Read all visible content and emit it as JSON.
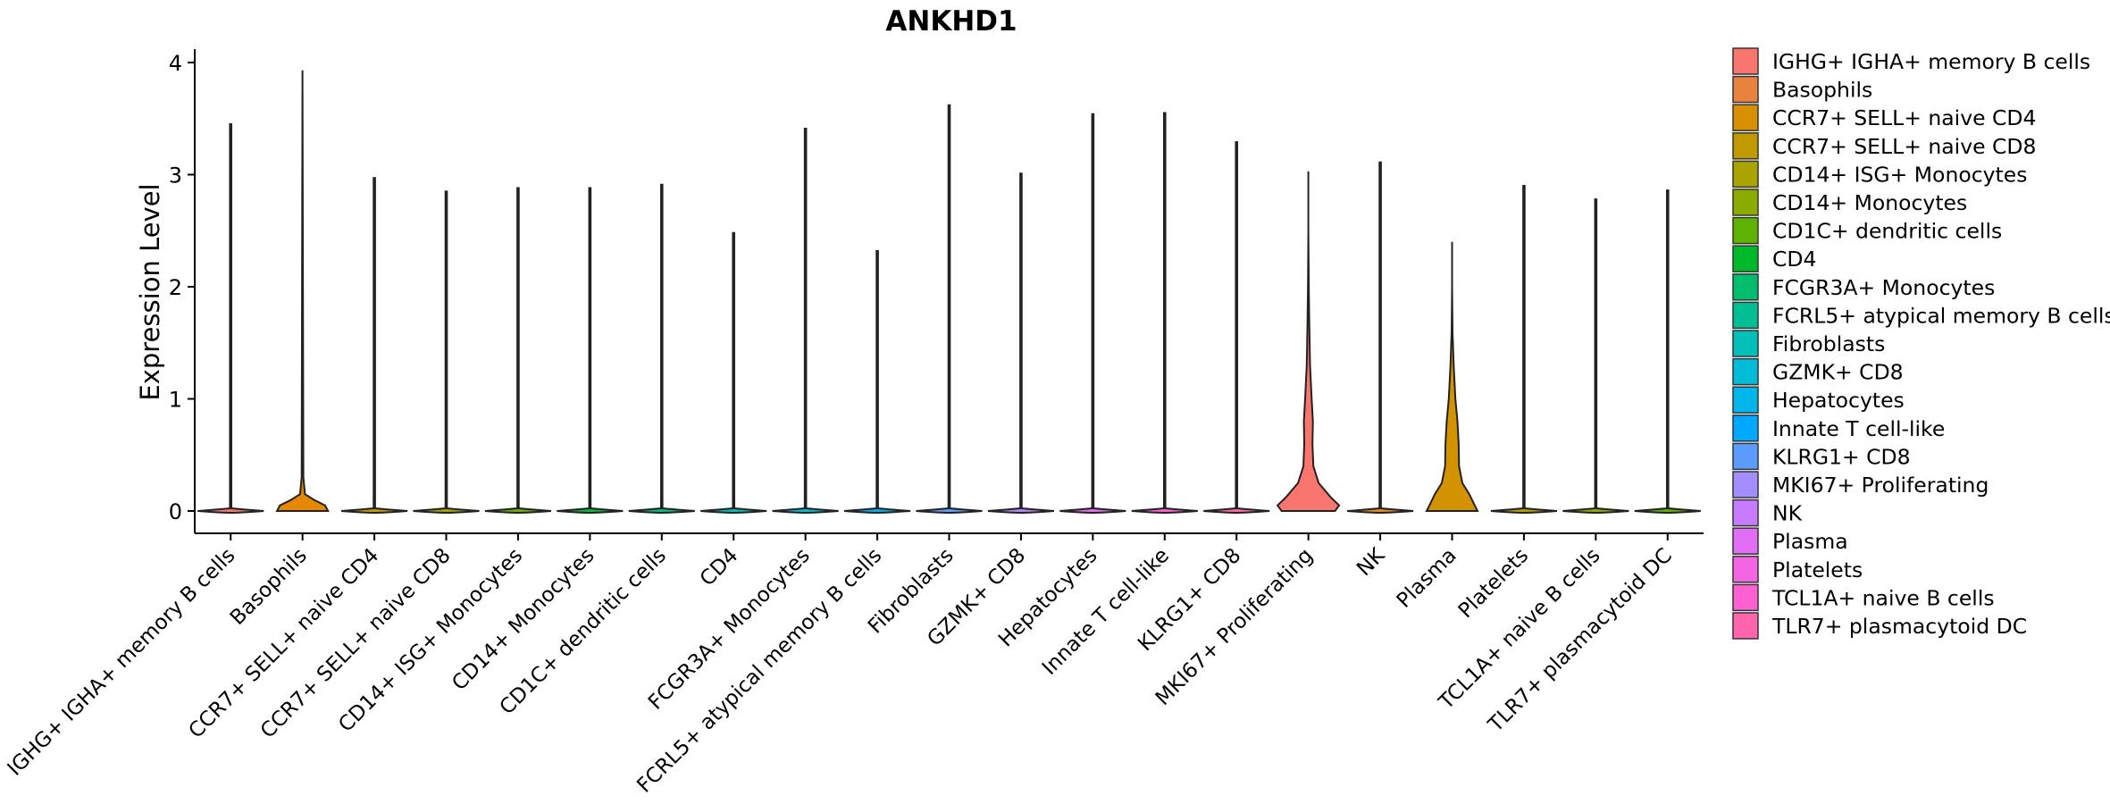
{
  "chart_data": {
    "type": "violin",
    "title": "ANKHD1",
    "xlabel": "",
    "ylabel": "Expression Level",
    "ylim": [
      -0.2,
      4.15
    ],
    "yticks": [
      0,
      1,
      2,
      3,
      4
    ],
    "categories": [
      "IGHG+ IGHA+ memory B cells",
      "Basophils",
      "CCR7+ SELL+ naive CD4",
      "CCR7+ SELL+ naive CD8",
      "CD14+ ISG+ Monocytes",
      "CD14+ Monocytes",
      "CD1C+ dendritic cells",
      "CD4",
      "FCGR3A+ Monocytes",
      "FCRL5+ atypical memory B cells",
      "Fibroblasts",
      "GZMK+ CD8",
      "Hepatocytes",
      "Innate T cell-like",
      "KLRG1+ CD8",
      "MKI67+ Proliferating",
      "NK",
      "Plasma",
      "Platelets",
      "TCL1A+ naive B cells",
      "TLR7+ plasmacytoid DC"
    ],
    "max_values": [
      3.45,
      3.93,
      2.97,
      2.85,
      2.88,
      2.88,
      2.91,
      2.48,
      3.41,
      2.32,
      3.62,
      3.01,
      3.54,
      3.55,
      3.29,
      3.03,
      3.11,
      2.38,
      2.9,
      2.78,
      2.86
    ],
    "density_profiles": [
      [],
      [
        [
          0,
          0.62
        ],
        [
          0.05,
          0.55
        ],
        [
          0.1,
          0.28
        ],
        [
          0.15,
          0.06
        ],
        [
          0.3,
          0.02
        ],
        [
          3.9,
          0.0
        ]
      ],
      [],
      [],
      [],
      [],
      [],
      [],
      [],
      [],
      [],
      [],
      [],
      [],
      [],
      [
        [
          0,
          0.65
        ],
        [
          0.05,
          0.75
        ],
        [
          0.12,
          0.55
        ],
        [
          0.25,
          0.25
        ],
        [
          0.4,
          0.12
        ],
        [
          0.6,
          0.1
        ],
        [
          0.8,
          0.11
        ],
        [
          1.0,
          0.08
        ],
        [
          1.3,
          0.04
        ],
        [
          1.7,
          0.02
        ],
        [
          2.0,
          0.01
        ],
        [
          2.5,
          0.0
        ],
        [
          3.0,
          0.0
        ]
      ],
      [],
      [
        [
          0,
          0.62
        ],
        [
          0.05,
          0.55
        ],
        [
          0.15,
          0.42
        ],
        [
          0.25,
          0.25
        ],
        [
          0.4,
          0.17
        ],
        [
          0.6,
          0.16
        ],
        [
          0.8,
          0.13
        ],
        [
          1.0,
          0.08
        ],
        [
          1.3,
          0.04
        ],
        [
          1.6,
          0.01
        ],
        [
          2.0,
          0.0
        ],
        [
          2.4,
          0.0
        ]
      ],
      [],
      [],
      []
    ],
    "colors": [
      "#F8766D",
      "#E58700",
      "#C99800",
      "#A3A500",
      "#6BB100",
      "#00BA38",
      "#00BF7D",
      "#00C0AF",
      "#00BCD8",
      "#00B0F6",
      "#619CFF",
      "#B983FF",
      "#E76BF3",
      "#FD61D1",
      "#FF67A4",
      "#F8766D",
      "#E7861B",
      "#D39200",
      "#B79F00",
      "#93AA00",
      "#5EB300"
    ],
    "legend_labels": [
      " IGHG+ IGHA+ memory B cells",
      "Basophils",
      "CCR7+ SELL+ naive CD4",
      "CCR7+ SELL+ naive CD8",
      "CD14+ ISG+ Monocytes",
      "CD14+ Monocytes",
      "CD1C+ dendritic cells",
      "CD4",
      "FCGR3A+ Monocytes",
      "FCRL5+ atypical memory B cells",
      "Fibroblasts",
      "GZMK+ CD8",
      "Hepatocytes",
      "Innate T cell-like",
      "KLRG1+ CD8",
      "MKI67+ Proliferating",
      "NK",
      "Plasma",
      "Platelets",
      "TCL1A+ naive B cells",
      "TLR7+ plasmacytoid DC"
    ],
    "legend_colors": [
      "#F8766D",
      "#E7823F",
      "#D89000",
      "#C09A00",
      "#A9A400",
      "#8CAB00",
      "#5EB300",
      "#00B928",
      "#00BE6C",
      "#00BF96",
      "#00C0B9",
      "#00BCD8",
      "#00B6EB",
      "#00A9FF",
      "#5D9CFF",
      "#A48DFF",
      "#C77CFF",
      "#E36EF6",
      "#F365E2",
      "#FD61D1",
      "#FF65AD"
    ],
    "legend_position": "right"
  }
}
